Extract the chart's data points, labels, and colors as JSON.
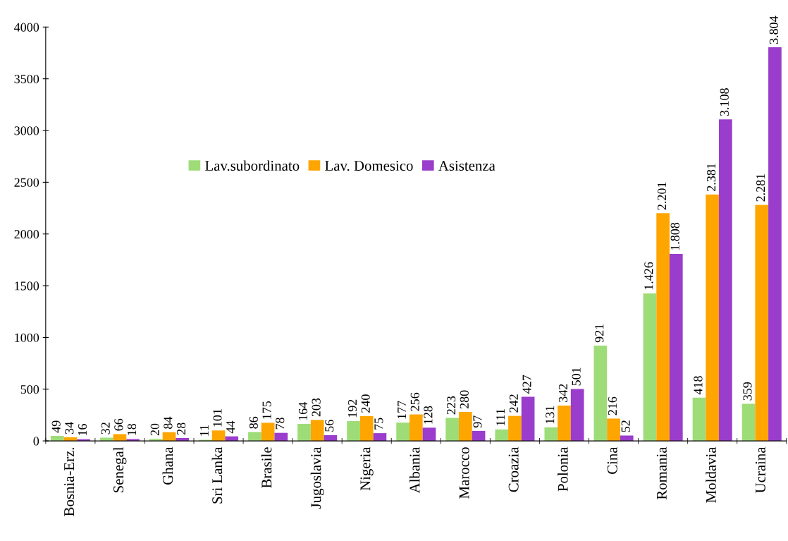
{
  "chart_data": {
    "type": "bar",
    "categories": [
      "Bosnia-Erz.",
      "Senegal",
      "Ghana",
      "Sri Lanka",
      "Brasile",
      "Jugoslavia",
      "Nigeria",
      "Albania",
      "Marocco",
      "Croazia",
      "Polonia",
      "Cina",
      "Romania",
      "Moldavia",
      "Ucraina"
    ],
    "series": [
      {
        "name": "Lav.subordinato",
        "color": "#9edc78",
        "values": [
          49,
          32,
          20,
          11,
          86,
          164,
          192,
          177,
          223,
          111,
          131,
          921,
          1426,
          418,
          359
        ],
        "value_labels": [
          "49",
          "32",
          "20",
          "11",
          "86",
          "164",
          "192",
          "177",
          "223",
          "111",
          "131",
          "921",
          "1.426",
          "418",
          "359"
        ]
      },
      {
        "name": "Lav. Domesico",
        "color": "#ffa500",
        "values": [
          34,
          66,
          84,
          101,
          175,
          203,
          240,
          256,
          280,
          242,
          342,
          216,
          2201,
          2381,
          2281
        ],
        "value_labels": [
          "34",
          "66",
          "84",
          "101",
          "175",
          "203",
          "240",
          "256",
          "280",
          "242",
          "342",
          "216",
          "2.201",
          "2.381",
          "2.281"
        ]
      },
      {
        "name": "Asistenza",
        "color": "#9a3ccc",
        "values": [
          16,
          18,
          28,
          44,
          78,
          56,
          75,
          128,
          97,
          427,
          501,
          52,
          1808,
          3108,
          3804
        ],
        "value_labels": [
          "16",
          "18",
          "28",
          "44",
          "78",
          "56",
          "75",
          "128",
          "97",
          "427",
          "501",
          "52",
          "1.808",
          "3.108",
          "3.804"
        ]
      }
    ],
    "ylim": [
      0,
      4000
    ],
    "yticks": [
      0,
      500,
      1000,
      1500,
      2000,
      2500,
      3000,
      3500,
      4000
    ],
    "grid": false,
    "legend": "top"
  }
}
